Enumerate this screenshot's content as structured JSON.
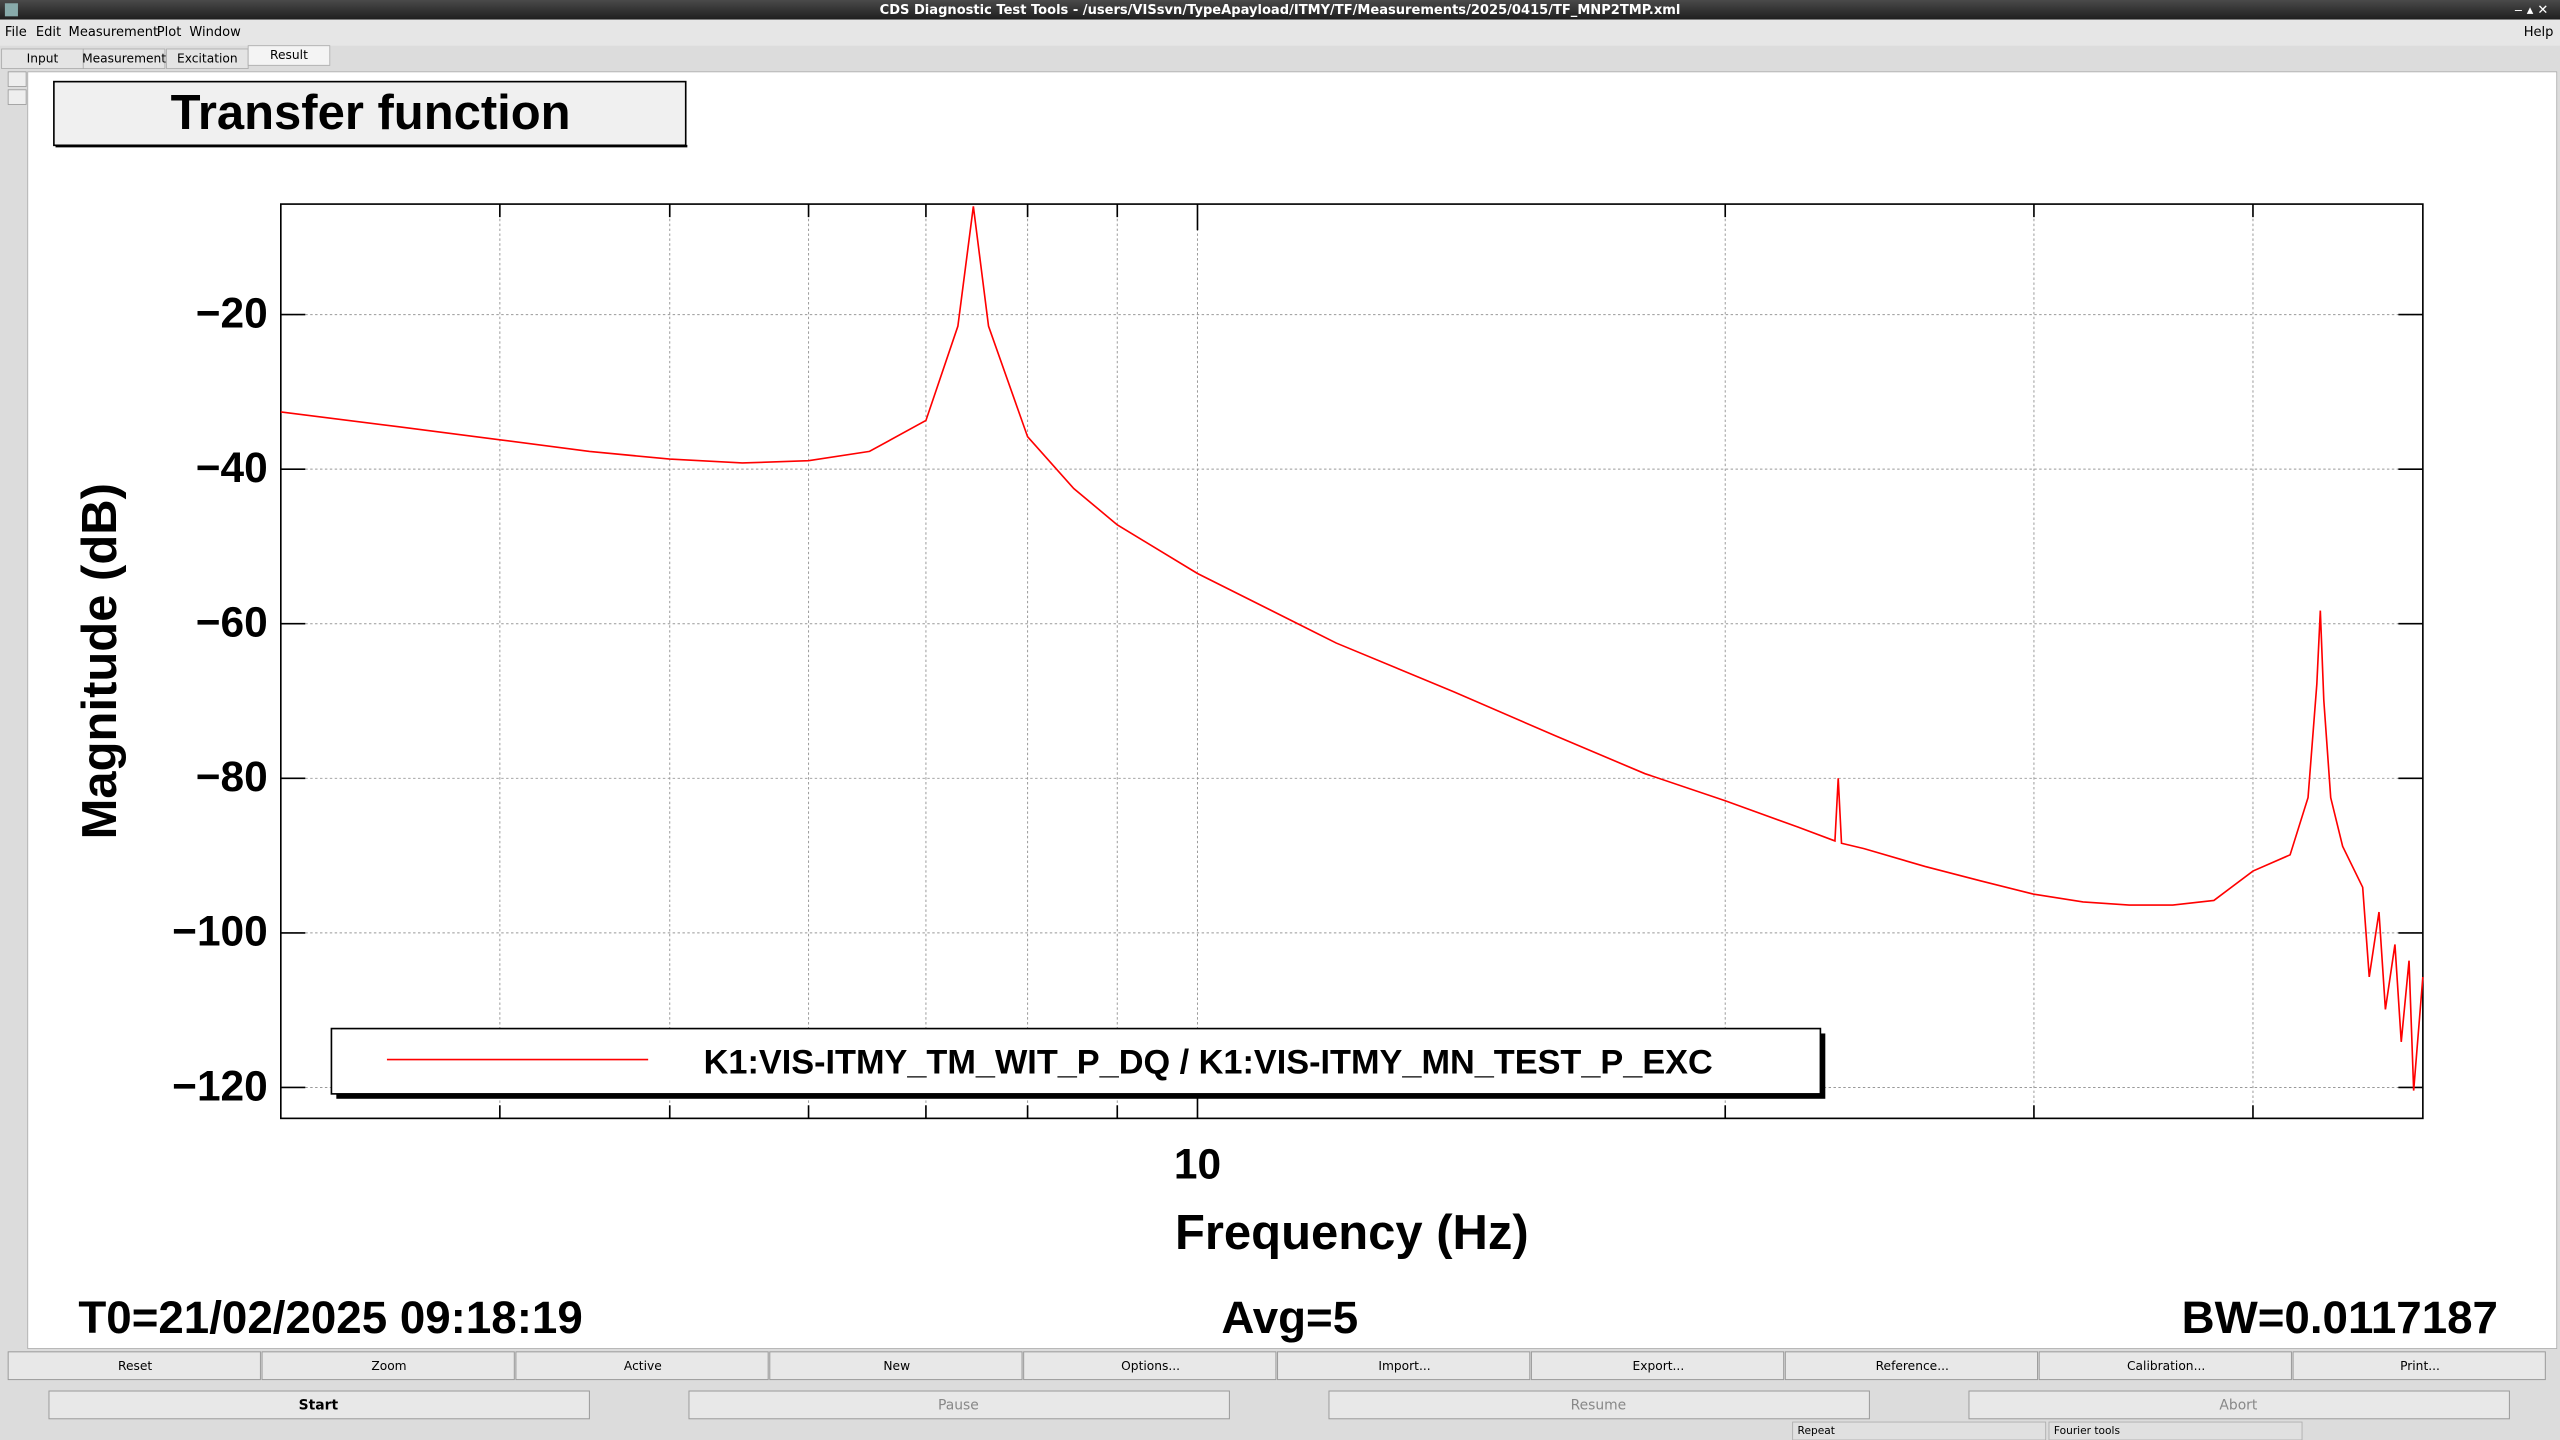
{
  "window": {
    "title": "CDS Diagnostic Test Tools - /users/VISsvn/TypeApayload/ITMY/TF/Measurements/2025/0415/TF_MNP2TMP.xml"
  },
  "menu": [
    "File",
    "Edit",
    "Measurement",
    "Plot",
    "Window"
  ],
  "help": "Help",
  "tabs": [
    "Input",
    "Measurement",
    "Excitation",
    "Result"
  ],
  "buttons": [
    "Reset",
    "Zoom",
    "Active",
    "New",
    "Options...",
    "Import...",
    "Export...",
    "Reference...",
    "Calibration...",
    "Print..."
  ],
  "controls": [
    "Start",
    "Pause",
    "Resume",
    "Abort"
  ],
  "status_bar": [
    "Repeat",
    "Fourier tools"
  ],
  "chart_data": {
    "type": "line",
    "title": "Transfer function",
    "x_label": "Frequency (Hz)",
    "y_label": "Magnitude (dB)",
    "xscale": "log",
    "grid": true,
    "xlim": [
      3,
      50
    ],
    "xticks": [
      10
    ],
    "xminor_ticks": [
      4,
      5,
      6,
      7,
      8,
      9,
      20,
      30,
      40
    ],
    "ylim": [
      -124,
      -5.7
    ],
    "yticks": [
      {
        "value": -20,
        "label": "−20"
      },
      {
        "value": -40,
        "label": "−40"
      },
      {
        "value": -60,
        "label": "−60"
      },
      {
        "value": -80,
        "label": "−80"
      },
      {
        "value": -100,
        "label": "−100"
      },
      {
        "value": -120,
        "label": "−120"
      }
    ],
    "x": [
      3,
      3.5,
      4,
      4.5,
      5,
      5.5,
      6,
      6.5,
      7,
      7.3,
      7.45,
      7.6,
      8,
      8.5,
      9,
      10,
      12,
      14,
      16,
      18,
      20,
      22,
      23.1,
      23.2,
      23.3,
      24,
      26,
      28,
      30,
      32,
      34,
      36,
      38,
      40,
      42,
      43,
      43.5,
      43.7,
      43.9,
      44.3,
      45,
      46.2,
      46.6,
      47.2,
      47.6,
      48.2,
      48.6,
      49.1,
      49.4,
      50
    ],
    "series": [
      {
        "name": "K1:VIS-ITMY_TM_WIT_P_DQ / K1:VIS-ITMY_MN_TEST_P_EXC",
        "color": "#ff0000",
        "values": [
          -32.6,
          -34.5,
          -36.2,
          -37.7,
          -38.7,
          -39.2,
          -38.9,
          -37.7,
          -33.7,
          -21.5,
          -6,
          -21.5,
          -35.8,
          -42.5,
          -47.2,
          -53.5,
          -62.5,
          -68.8,
          -74.5,
          -79.4,
          -82.9,
          -86.3,
          -88.1,
          -80,
          -88.4,
          -89.1,
          -91.4,
          -93.3,
          -95,
          -96,
          -96.4,
          -96.4,
          -95.8,
          -92,
          -89.9,
          -82.5,
          -67.8,
          -58.3,
          -69.9,
          -82.5,
          -88.8,
          -94.1,
          -105.7,
          -97.3,
          -109.9,
          -101.5,
          -114.1,
          -103.6,
          -120.4,
          -105.7
        ]
      }
    ],
    "annotations": [
      "T0=21/02/2025 09:18:19",
      "Avg=5",
      "BW=0.0117187"
    ]
  }
}
